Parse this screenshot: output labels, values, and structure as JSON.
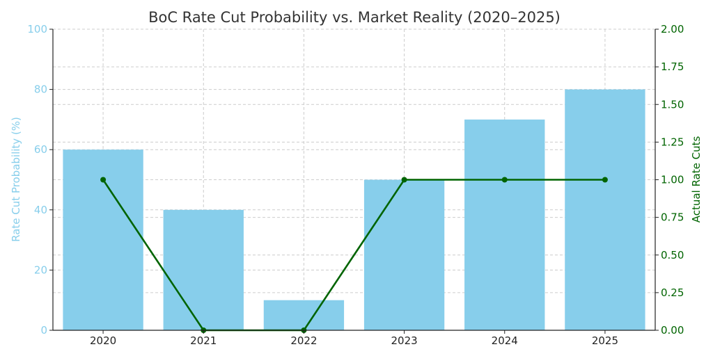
{
  "chart_data": {
    "type": "bar",
    "title": "BoC Rate Cut Probability vs. Market Reality (2020–2025)",
    "xlabel": "",
    "categories": [
      "2020",
      "2021",
      "2022",
      "2023",
      "2024",
      "2025"
    ],
    "series": [
      {
        "name": "Rate Cut Probability (%)",
        "type": "bar",
        "axis": "left",
        "values": [
          60,
          40,
          10,
          50,
          70,
          80
        ],
        "color": "#87ceeb"
      },
      {
        "name": "Actual Rate Cuts",
        "type": "line",
        "axis": "right",
        "values": [
          1,
          0,
          0,
          1,
          1,
          1
        ],
        "color": "#006400"
      }
    ],
    "y_left": {
      "label": "Rate Cut Probability (%)",
      "lim": [
        0,
        100
      ],
      "ticks": [
        0,
        20,
        40,
        60,
        80,
        100
      ],
      "color": "#87ceeb"
    },
    "y_right": {
      "label": "Actual Rate Cuts",
      "lim": [
        0,
        2
      ],
      "ticks": [
        "0.00",
        "0.25",
        "0.50",
        "0.75",
        "1.00",
        "1.25",
        "1.50",
        "1.75",
        "2.00"
      ],
      "color": "#006400"
    },
    "grid": true,
    "legend": "none"
  }
}
